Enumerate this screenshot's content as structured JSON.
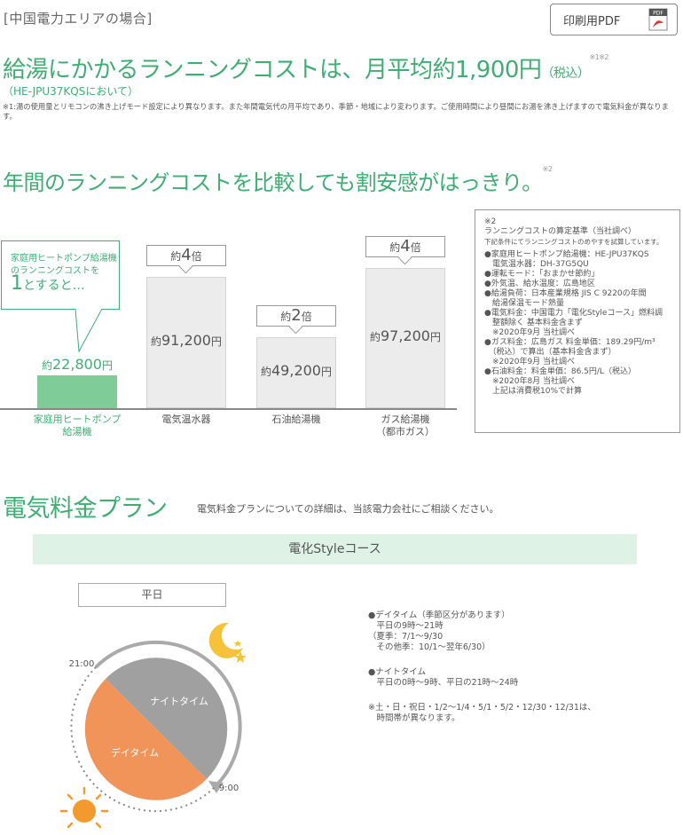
{
  "header": {
    "region": "[中国電力エリアの場合]",
    "pdf_button": "印刷用PDF",
    "pdf_icon_text": "PDF"
  },
  "headline": {
    "main": "給湯にかかるランニングコストは、月平均約1,900円",
    "tax": "（税込）",
    "marks": "※1※2",
    "model": "（HE-JPU37KQSにおいて）",
    "note": "※1:湯の使用量とリモコンの沸き上げモード設定により異なります。また年間電気代の月平均であり、季節・地域により変わります。ご使用時間により昼間にお湯を沸き上げますので電気料金が異なります。"
  },
  "compare": {
    "title": "年間のランニングコストを比較しても割安感がはっきり。",
    "mark": "※2"
  },
  "chart_data": {
    "type": "bar",
    "categories": [
      "家庭用ヒートポンプ給湯機",
      "電気温水器",
      "石油給湯機",
      "ガス給湯機（都市ガス）"
    ],
    "values": [
      22800,
      91200,
      49200,
      97200
    ],
    "value_labels": [
      {
        "prefix": "約",
        "num": "22,800",
        "unit": "円"
      },
      {
        "prefix": "約",
        "num": "91,200",
        "unit": "円"
      },
      {
        "prefix": "約",
        "num": "49,200",
        "unit": "円"
      },
      {
        "prefix": "約",
        "num": "97,200",
        "unit": "円"
      }
    ],
    "ratios": [
      null,
      "4",
      "2",
      "4"
    ],
    "ratio_prefix": "約",
    "ratio_suffix": "倍",
    "category_lines": [
      [
        "家庭用ヒートポンプ",
        "給湯機"
      ],
      [
        "電気温水器"
      ],
      [
        "石油給湯機"
      ],
      [
        "ガス給湯機",
        "（都市ガス）"
      ]
    ],
    "colors": {
      "highlight": "#7fcc99",
      "other": "#ececec"
    },
    "highlight_note": {
      "line1": "家庭用ヒートポンプ給湯機",
      "line2": "のランニングコストを",
      "one": "1",
      "line3": "とすると…"
    }
  },
  "criteria": {
    "mark": "※2",
    "title": "ランニングコストの算定基準（当社調べ）",
    "subtitle": "下記条件にてランニングコストのめやすを試算しています。",
    "items": [
      "●家庭用ヒートポンプ給湯機：HE-JPU37KQS",
      "　電気温水器：DH-37G5QU",
      "●運転モード：「おまかせ節約」",
      "●外気温、給水温度：広島地区",
      "●給湯負荷：日本産業規格 JIS C 9220の年間",
      "　給湯保温モード熱量",
      "●電気料金：中国電力「電化Styleコース」燃料調",
      "　整額除く 基本料金含まず",
      "　※2020年9月 当社調べ",
      "●ガス料金：広島ガス 料金単価：189.29円/m³",
      "　（税込）で算出（基本料金含まず）",
      "　※2020年9月 当社調べ",
      "●石油料金：料金単価：86.5円/L（税込）",
      "　※2020年8月 当社調べ",
      "　上記は消費税10%で計算"
    ]
  },
  "plan": {
    "title": "電気料金プラン",
    "note": "電気料金プランについての詳細は、当該電力会社にご相談ください。",
    "course": "電化Styleコース",
    "weekday": "平日",
    "clock": {
      "night_label": "ナイトタイム",
      "day_label": "デイタイム",
      "time_top": "21:00",
      "time_bottom": "9:00"
    },
    "legend": [
      "●デイタイム（季節区分があります）",
      "　平日の9時〜21時",
      "（夏季：7/1〜9/30",
      "　その他季：10/1〜翌年6/30）",
      "",
      "●ナイトタイム",
      "　平日の0時〜9時、平日の21時〜24時",
      "",
      "※土・日・祝日・1/2〜1/4・5/1・5/2・12/30・12/31は、",
      "　時間帯が異なります。"
    ]
  }
}
